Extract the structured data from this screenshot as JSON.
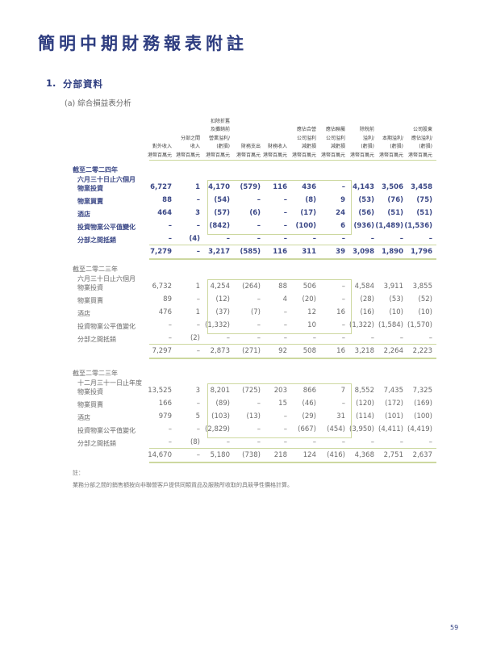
{
  "title": "簡明中期財務報表附註",
  "section": {
    "number": "1.",
    "title": "分部資料",
    "subsection": "(a) 綜合損益表分析"
  },
  "columns": [
    [
      "對外收入",
      "港幣百萬元"
    ],
    [
      "分部之間",
      "收入",
      "港幣百萬元"
    ],
    [
      "扣除折舊",
      "及攤銷前",
      "營業溢利/",
      "(虧損)",
      "港幣百萬元"
    ],
    [
      "財務支出",
      "港幣百萬元"
    ],
    [
      "財務收入",
      "港幣百萬元"
    ],
    [
      "應佔合營",
      "公司溢利",
      "減虧損",
      "港幣百萬元"
    ],
    [
      "應佔聯屬",
      "公司溢利",
      "減虧損",
      "港幣百萬元"
    ],
    [
      "除稅前",
      "溢利/",
      "(虧損)",
      "港幣百萬元"
    ],
    [
      "本期溢利/",
      "(虧損)",
      "港幣百萬元"
    ],
    [
      "公司股東",
      "應佔溢利/",
      "(虧損)",
      "港幣百萬元"
    ]
  ],
  "periods": [
    {
      "label": [
        "截至二零二四年",
        "六月三十日止六個月"
      ],
      "style": "bold",
      "rows": [
        {
          "label": "物業投資",
          "values": [
            "6,727",
            "1",
            "4,170",
            "(579)",
            "116",
            "436",
            "–",
            "4,143",
            "3,506",
            "3,458"
          ]
        },
        {
          "label": "物業買賣",
          "values": [
            "88",
            "–",
            "(54)",
            "–",
            "–",
            "(8)",
            "9",
            "(53)",
            "(76)",
            "(75)"
          ]
        },
        {
          "label": "酒店",
          "values": [
            "464",
            "3",
            "(57)",
            "(6)",
            "–",
            "(17)",
            "24",
            "(56)",
            "(51)",
            "(51)"
          ]
        },
        {
          "label": "投資物業公平值變化",
          "values": [
            "–",
            "–",
            "(842)",
            "–",
            "–",
            "(100)",
            "6",
            "(936)",
            "(1,489)",
            "(1,536)"
          ]
        },
        {
          "label": "分部之間抵銷",
          "values": [
            "–",
            "(4)",
            "–",
            "–",
            "–",
            "–",
            "–",
            "–",
            "–",
            "–"
          ]
        }
      ],
      "total": [
        "7,279",
        "–",
        "3,217",
        "(585)",
        "116",
        "311",
        "39",
        "3,098",
        "1,890",
        "1,796"
      ]
    },
    {
      "label": [
        "截至二零二三年",
        "六月三十日止六個月"
      ],
      "style": "gray",
      "rows": [
        {
          "label": "物業投資",
          "values": [
            "6,732",
            "1",
            "4,254",
            "(264)",
            "88",
            "506",
            "–",
            "4,584",
            "3,911",
            "3,855"
          ]
        },
        {
          "label": "物業買賣",
          "values": [
            "89",
            "–",
            "(12)",
            "–",
            "4",
            "(20)",
            "–",
            "(28)",
            "(53)",
            "(52)"
          ]
        },
        {
          "label": "酒店",
          "values": [
            "476",
            "1",
            "(37)",
            "(7)",
            "–",
            "12",
            "16",
            "(16)",
            "(10)",
            "(10)"
          ]
        },
        {
          "label": "投資物業公平值變化",
          "values": [
            "–",
            "–",
            "(1,332)",
            "–",
            "–",
            "10",
            "–",
            "(1,322)",
            "(1,584)",
            "(1,570)"
          ]
        },
        {
          "label": "分部之間抵銷",
          "values": [
            "–",
            "(2)",
            "–",
            "–",
            "–",
            "–",
            "–",
            "–",
            "–",
            "–"
          ]
        }
      ],
      "total": [
        "7,297",
        "–",
        "2,873",
        "(271)",
        "92",
        "508",
        "16",
        "3,218",
        "2,264",
        "2,223"
      ]
    },
    {
      "label": [
        "截至二零二三年",
        "十二月三十一日止年度"
      ],
      "style": "gray",
      "rows": [
        {
          "label": "物業投資",
          "values": [
            "13,525",
            "3",
            "8,201",
            "(725)",
            "203",
            "866",
            "7",
            "8,552",
            "7,435",
            "7,325"
          ]
        },
        {
          "label": "物業買賣",
          "values": [
            "166",
            "–",
            "(89)",
            "–",
            "15",
            "(46)",
            "–",
            "(120)",
            "(172)",
            "(169)"
          ]
        },
        {
          "label": "酒店",
          "values": [
            "979",
            "5",
            "(103)",
            "(13)",
            "–",
            "(29)",
            "31",
            "(114)",
            "(101)",
            "(100)"
          ]
        },
        {
          "label": "投資物業公平值變化",
          "values": [
            "–",
            "–",
            "(2,829)",
            "–",
            "–",
            "(667)",
            "(454)",
            "(3,950)",
            "(4,411)",
            "(4,419)"
          ]
        },
        {
          "label": "分部之間抵銷",
          "values": [
            "–",
            "(8)",
            "–",
            "–",
            "–",
            "–",
            "–",
            "–",
            "–",
            "–"
          ]
        }
      ],
      "total": [
        "14,670",
        "–",
        "5,180",
        "(738)",
        "218",
        "124",
        "(416)",
        "4,368",
        "2,751",
        "2,637"
      ]
    }
  ],
  "note": {
    "heading": "註：",
    "text": "業務分部之間的銷售額按向非聯營客戶提供同類貨品及服務所收取的具競爭性價格計算。"
  },
  "page_number": "59",
  "colors": {
    "title": "#2e3d80",
    "rule": "#cdd8a0"
  }
}
